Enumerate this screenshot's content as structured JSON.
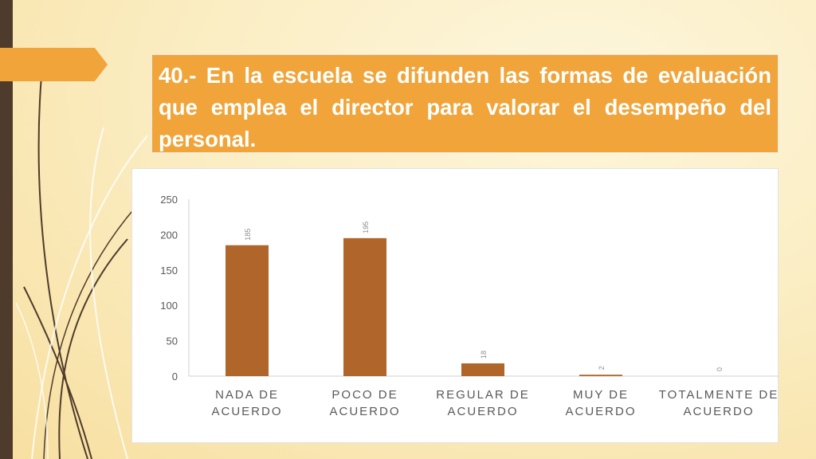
{
  "slide": {
    "title": "40.- En la escuela se difunden las formas de evaluación que emplea el director para valorar el desempeño del personal."
  },
  "colors": {
    "bar": "#b0652a",
    "title_bg": "#f0a43a",
    "left_bar": "#4f3b2b"
  },
  "chart_data": {
    "type": "bar",
    "categories": [
      [
        "NADA DE",
        "ACUERDO"
      ],
      [
        "POCO DE",
        "ACUERDO"
      ],
      [
        "REGULAR DE",
        "ACUERDO"
      ],
      [
        "MUY DE",
        "ACUERDO"
      ],
      [
        "TOTALMENTE DE",
        "ACUERDO"
      ]
    ],
    "values": [
      185,
      195,
      18,
      2,
      0
    ],
    "ylim": [
      0,
      250
    ],
    "yticks": [
      0,
      50,
      100,
      150,
      200,
      250
    ],
    "grid": false,
    "legend": "none"
  }
}
